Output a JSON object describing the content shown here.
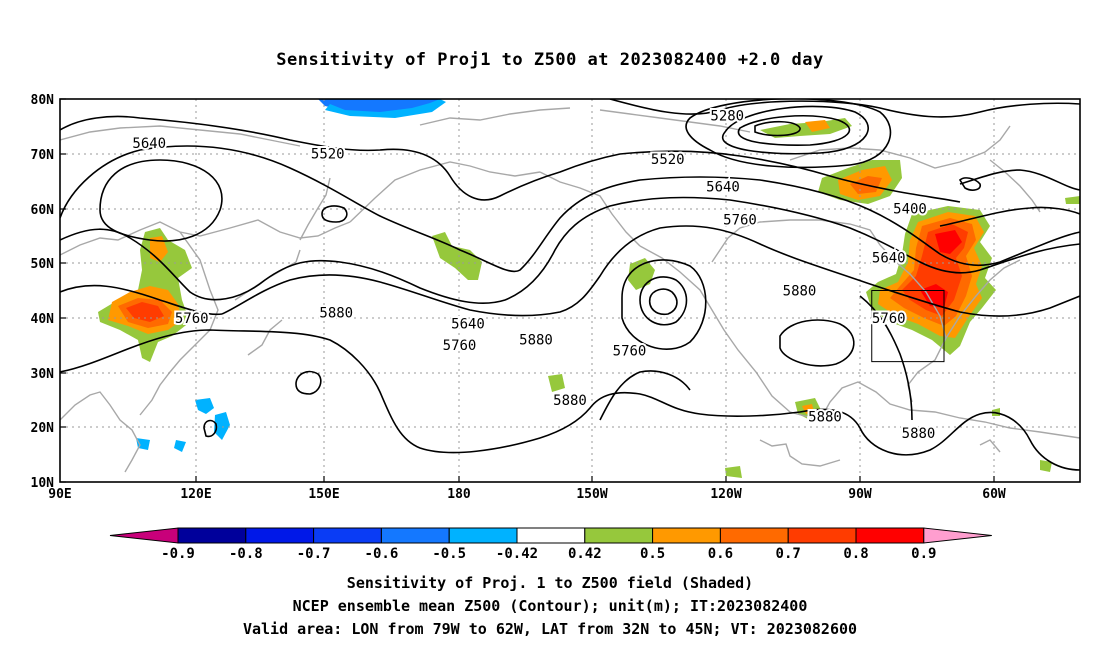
{
  "title": "Sensitivity of Proj1 to Z500 at 2023082400 +2.0 day",
  "lat_labels": [
    "80N",
    "70N",
    "60N",
    "50N",
    "40N",
    "30N",
    "20N",
    "10N"
  ],
  "lon_labels": [
    "90E",
    "120E",
    "150E",
    "180",
    "150W",
    "120W",
    "90W",
    "60W"
  ],
  "contour_labels": [
    {
      "text": "5280",
      "lon": -113,
      "lat": 77
    },
    {
      "text": "5640",
      "lon": 111,
      "lat": 72
    },
    {
      "text": "5520",
      "lon": 153,
      "lat": 70
    },
    {
      "text": "5520",
      "lon": -127,
      "lat": 69
    },
    {
      "text": "5640",
      "lon": -114,
      "lat": 64
    },
    {
      "text": "5760",
      "lon": -110,
      "lat": 58
    },
    {
      "text": "5400",
      "lon": -70,
      "lat": 60
    },
    {
      "text": "5640",
      "lon": -75,
      "lat": 51
    },
    {
      "text": "5880",
      "lon": -96,
      "lat": 45
    },
    {
      "text": "5760",
      "lon": -75,
      "lat": 40
    },
    {
      "text": "5880",
      "lon": 155,
      "lat": 41
    },
    {
      "text": "5640",
      "lon": -174,
      "lat": 39
    },
    {
      "text": "5760",
      "lon": -176,
      "lat": 35
    },
    {
      "text": "5880",
      "lon": -158,
      "lat": 36
    },
    {
      "text": "5760",
      "lon": -136,
      "lat": 34
    },
    {
      "text": "5760",
      "lon": 121,
      "lat": 40
    },
    {
      "text": "5880",
      "lon": -150,
      "lat": 25
    },
    {
      "text": "5880",
      "lon": -90,
      "lat": 22
    },
    {
      "text": "5880",
      "lon": -68,
      "lat": 19
    }
  ],
  "valid_box": {
    "lon_min": -79,
    "lon_max": -62,
    "lat_min": 32,
    "lat_max": 45
  },
  "colorbar": {
    "labels": [
      "-0.9",
      "-0.8",
      "-0.7",
      "-0.6",
      "-0.5",
      "-0.42",
      "0.42",
      "0.5",
      "0.6",
      "0.7",
      "0.8",
      "0.9"
    ],
    "colors": [
      "#00009b",
      "#0018e8",
      "#0a3cf5",
      "#1478ff",
      "#00b2ff",
      "#ffffff",
      "#96c83c",
      "#ff9900",
      "#ff6a00",
      "#ff3c00",
      "#ff0000"
    ],
    "under_color": "#c8007a",
    "over_color": "#ff9ecf"
  },
  "captions": [
    "Sensitivity of Proj. 1 to Z500 field (Shaded)",
    "NCEP ensemble mean Z500 (Contour); unit(m); IT:2023082400",
    "Valid area: LON from 79W to 62W, LAT from 32N to 45N; VT: 2023082600"
  ]
}
